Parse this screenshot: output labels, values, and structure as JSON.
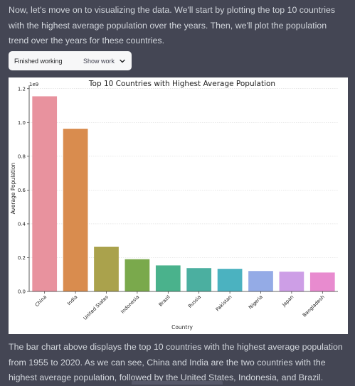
{
  "conversation": {
    "intro_text": "Now, let's move on to visualizing the data. We'll start by plotting the top 10 countries with the highest average population over the years. Then, we'll plot the population trend over the years for these countries.",
    "work_status": "Finished working",
    "show_work_label": "Show work",
    "outro_text": "The bar chart above displays the top 10 countries with the highest average population from 1955 to 2020. As we can see, China and India are the two countries with the highest average population, followed by the United States, Indonesia, and Brazil."
  },
  "icons": {
    "show_work": "chevron-down-icon"
  },
  "colors": {
    "background": "#444654",
    "text": "#d1d5db",
    "pill_background": "#f7f7f8"
  },
  "chart_data": {
    "type": "bar",
    "title": "Top 10 Countries with Highest Average Population",
    "xlabel": "Country",
    "ylabel": "Average Population",
    "y_scale_label": "1e9",
    "ylim": [
      0,
      1.22
    ],
    "yticks": [
      0.0,
      0.2,
      0.4,
      0.6,
      0.8,
      1.0,
      1.2
    ],
    "ytick_labels": [
      "0.0",
      "0.2",
      "0.4",
      "0.6",
      "0.8",
      "1.0",
      "1.2"
    ],
    "grid": true,
    "categories": [
      "China",
      "India",
      "United States",
      "Indonesia",
      "Brazil",
      "Russia",
      "Pakistan",
      "Nigeria",
      "Japan",
      "Bangladesh"
    ],
    "values": [
      1.155,
      0.963,
      0.265,
      0.191,
      0.154,
      0.138,
      0.134,
      0.121,
      0.117,
      0.112
    ],
    "colors": [
      "#e8929e",
      "#d98c4e",
      "#aaa24c",
      "#7aa94c",
      "#4ab28c",
      "#4bafa0",
      "#4bb2c0",
      "#94abe6",
      "#cd9ee6",
      "#e88bcf"
    ]
  }
}
